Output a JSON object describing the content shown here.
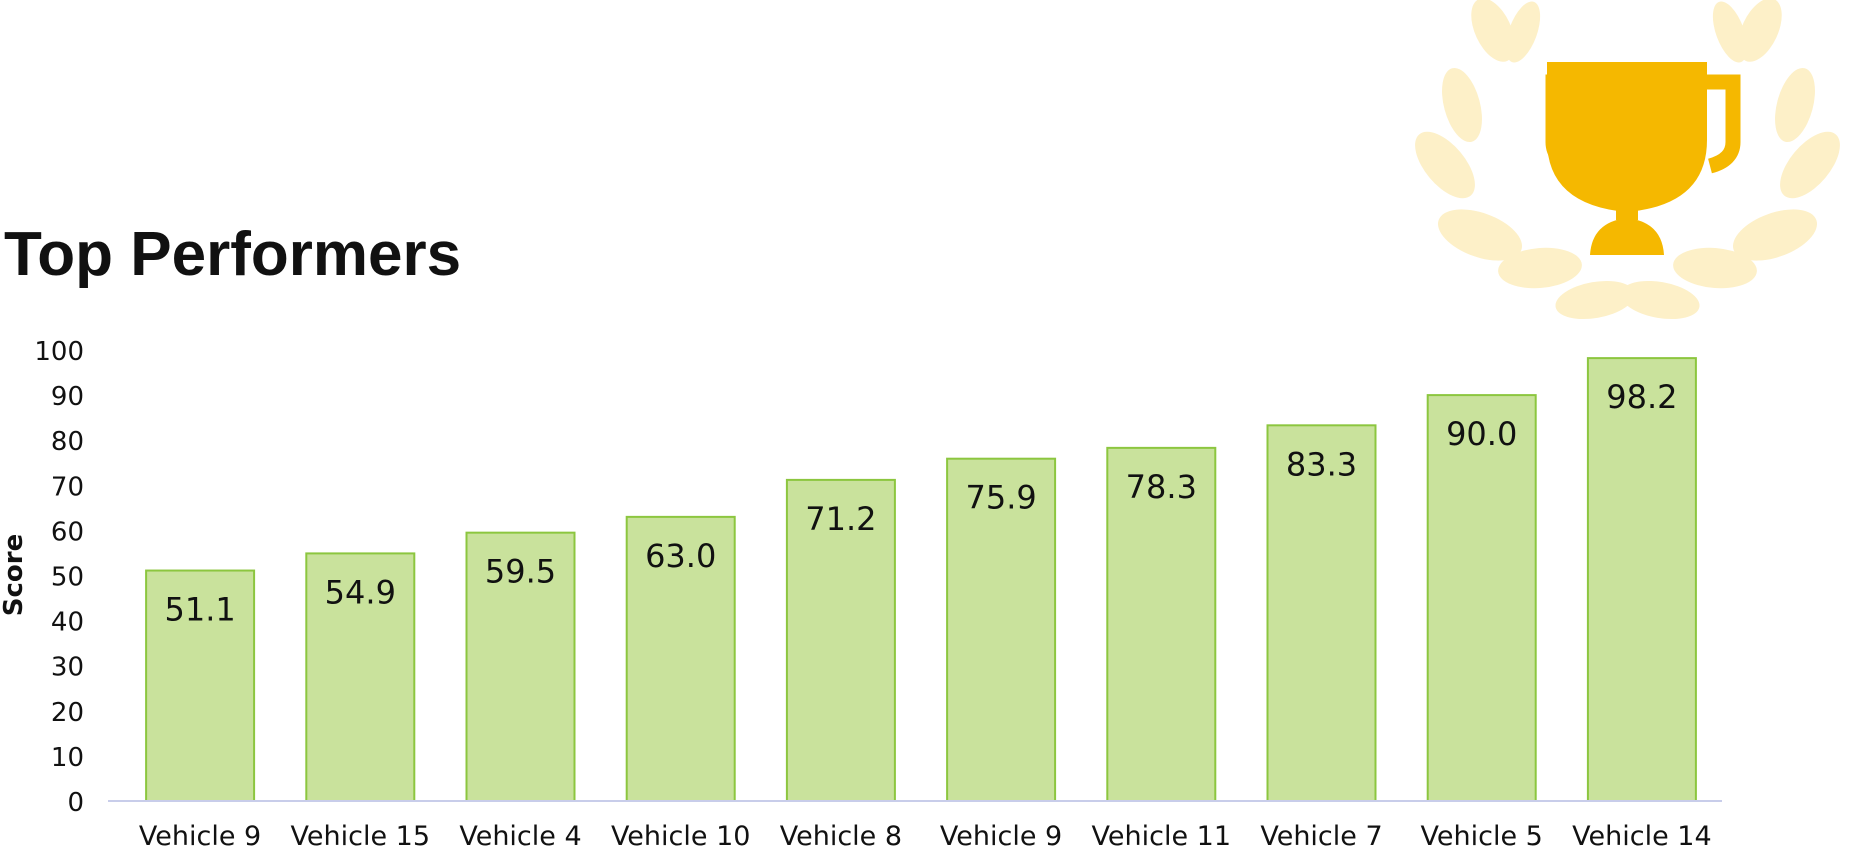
{
  "chart_data": {
    "type": "bar",
    "title": "Top Performers",
    "ylabel": "Score",
    "xlabel": "",
    "categories": [
      "Vehicle 9",
      "Vehicle 15",
      "Vehicle 4",
      "Vehicle 10",
      "Vehicle 8",
      "Vehicle 9",
      "Vehicle 11",
      "Vehicle 7",
      "Vehicle 5",
      "Vehicle 14"
    ],
    "values": [
      51.1,
      54.9,
      59.5,
      63.0,
      71.2,
      75.9,
      78.3,
      83.3,
      90.0,
      98.2
    ],
    "value_labels": [
      "51.1",
      "54.9",
      "59.5",
      "63.0",
      "71.2",
      "75.9",
      "78.3",
      "83.3",
      "90.0",
      "98.2"
    ],
    "ylim": [
      0,
      100
    ],
    "yticks": [
      0,
      10,
      20,
      30,
      40,
      50,
      60,
      70,
      80,
      90,
      100
    ],
    "grid": false,
    "legend": "none"
  },
  "decoration": {
    "icon": "trophy-laurel-icon"
  },
  "colors": {
    "bar_fill": "#c9e29c",
    "bar_stroke": "#8cc63f",
    "axis": "#c8cdea",
    "trophy": "#f5b800",
    "laurel": "#fdf0c8"
  }
}
